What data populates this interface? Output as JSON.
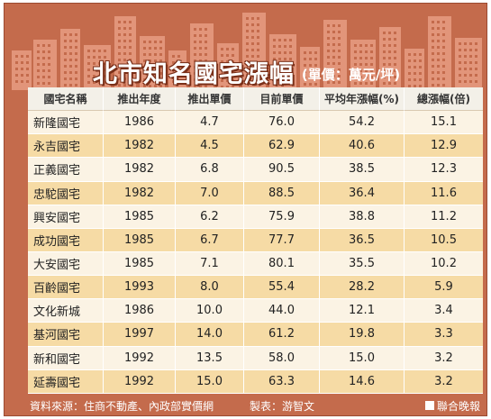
{
  "title": "北市知名國宅漲幅",
  "unit": "(單價：萬元/坪)",
  "footer": {
    "source": "資料來源：住商不動產、內政部實價網",
    "credit": "製表：游智文",
    "brand": "聯合晚報"
  },
  "colors": {
    "frame": "#c46b4c",
    "building": "#e2957a",
    "band": "#f6dba5",
    "row": "#fbf3e4"
  },
  "chart_data": {
    "type": "table",
    "columns": [
      "國宅名稱",
      "推出年度",
      "推出單價",
      "目前單價",
      "平均年漲幅(%)",
      "總漲幅(倍)"
    ],
    "rows": [
      [
        "新隆國宅",
        "1986",
        "4.7",
        "76.0",
        "54.2",
        "15.1"
      ],
      [
        "永吉國宅",
        "1982",
        "4.5",
        "62.9",
        "40.6",
        "12.9"
      ],
      [
        "正義國宅",
        "1982",
        "6.8",
        "90.5",
        "38.5",
        "12.3"
      ],
      [
        "忠駝國宅",
        "1982",
        "7.0",
        "88.5",
        "36.4",
        "11.6"
      ],
      [
        "興安國宅",
        "1985",
        "6.2",
        "75.9",
        "38.8",
        "11.2"
      ],
      [
        "成功國宅",
        "1985",
        "6.7",
        "77.7",
        "36.5",
        "10.5"
      ],
      [
        "大安國宅",
        "1985",
        "7.1",
        "80.1",
        "35.5",
        "10.2"
      ],
      [
        "百齡國宅",
        "1993",
        "8.0",
        "55.4",
        "28.2",
        "5.9"
      ],
      [
        "文化新城",
        "1986",
        "10.0",
        "44.0",
        "12.1",
        "3.4"
      ],
      [
        "基河國宅",
        "1997",
        "14.0",
        "61.2",
        "19.8",
        "3.3"
      ],
      [
        "新和國宅",
        "1992",
        "13.5",
        "58.0",
        "15.0",
        "3.2"
      ],
      [
        "延壽國宅",
        "1992",
        "15.0",
        "63.3",
        "14.6",
        "3.2"
      ]
    ]
  }
}
